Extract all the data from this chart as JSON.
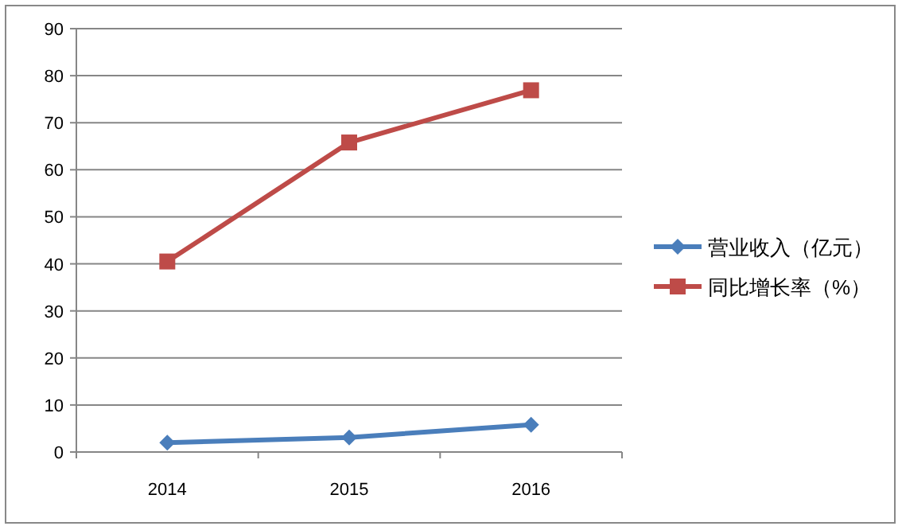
{
  "chart_data": {
    "type": "line",
    "categories": [
      "2014",
      "2015",
      "2016"
    ],
    "series": [
      {
        "name": "营业收入（亿元）",
        "color": "#4a7ebb",
        "marker": "diamond",
        "values": [
          2.0,
          3.1,
          5.8
        ]
      },
      {
        "name": "同比增长率（%）",
        "color": "#be4b48",
        "marker": "square",
        "values": [
          40.5,
          65.8,
          76.9
        ]
      }
    ],
    "ylim": [
      0,
      90
    ],
    "yticks": [
      0,
      10,
      20,
      30,
      40,
      50,
      60,
      70,
      80,
      90
    ],
    "grid": "y",
    "legend": "right"
  }
}
